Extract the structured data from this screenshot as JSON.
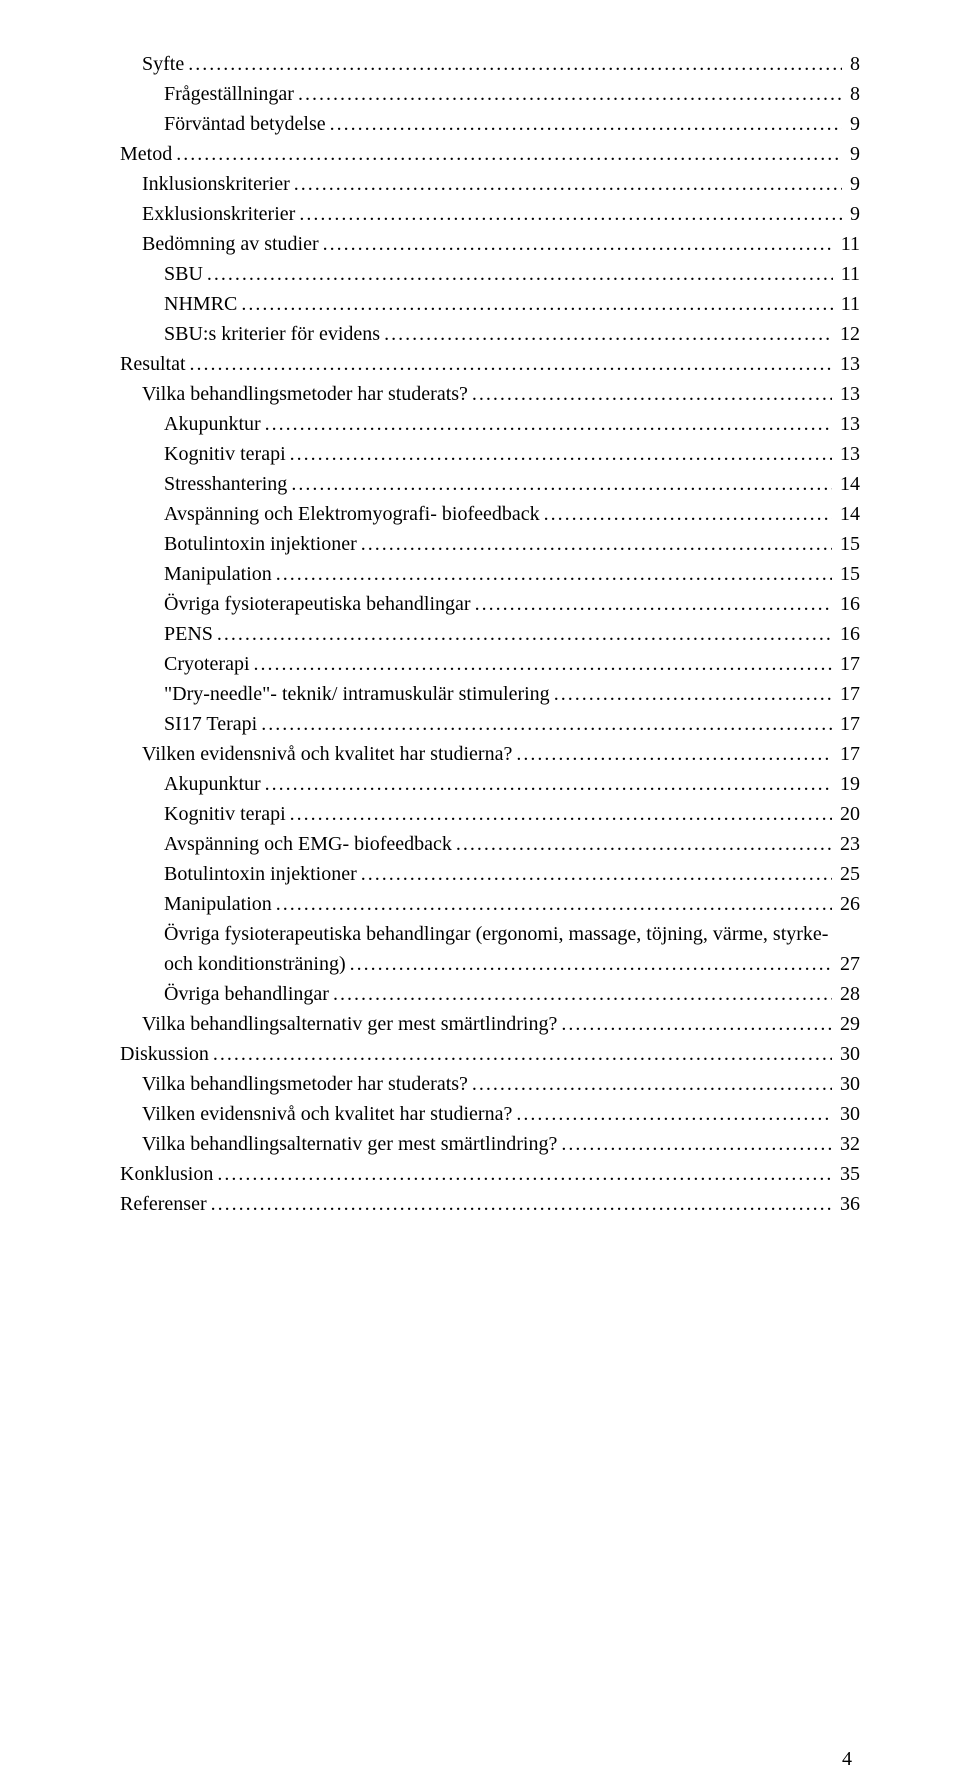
{
  "pageNumber": "4",
  "entries": [
    {
      "label": "Syfte",
      "page": "8",
      "indent": 1
    },
    {
      "label": "Frågeställningar",
      "page": "8",
      "indent": 2
    },
    {
      "label": "Förväntad betydelse",
      "page": "9",
      "indent": 2
    },
    {
      "label": "Metod",
      "page": "9",
      "indent": 0
    },
    {
      "label": "Inklusionskriterier",
      "page": "9",
      "indent": 1
    },
    {
      "label": "Exklusionskriterier",
      "page": "9",
      "indent": 1
    },
    {
      "label": "Bedömning av studier",
      "page": "11",
      "indent": 1
    },
    {
      "label": "SBU",
      "page": "11",
      "indent": 2
    },
    {
      "label": "NHMRC",
      "page": "11",
      "indent": 2
    },
    {
      "label": "SBU:s kriterier för evidens",
      "page": "12",
      "indent": 2
    },
    {
      "label": "Resultat",
      "page": "13",
      "indent": 0
    },
    {
      "label": "Vilka behandlingsmetoder har studerats?",
      "page": "13",
      "indent": 1
    },
    {
      "label": "Akupunktur",
      "page": "13",
      "indent": 2
    },
    {
      "label": "Kognitiv terapi",
      "page": "13",
      "indent": 2
    },
    {
      "label": "Stresshantering",
      "page": "14",
      "indent": 2
    },
    {
      "label": "Avspänning och Elektromyografi- biofeedback",
      "page": "14",
      "indent": 2
    },
    {
      "label": "Botulintoxin injektioner",
      "page": "15",
      "indent": 2
    },
    {
      "label": "Manipulation",
      "page": "15",
      "indent": 2
    },
    {
      "label": "Övriga fysioterapeutiska behandlingar",
      "page": "16",
      "indent": 2
    },
    {
      "label": "PENS",
      "page": "16",
      "indent": 2
    },
    {
      "label": "Cryoterapi",
      "page": "17",
      "indent": 2
    },
    {
      "label": "\"Dry-needle\"- teknik/ intramuskulär stimulering",
      "page": "17",
      "indent": 2
    },
    {
      "label": "SI17 Terapi",
      "page": "17",
      "indent": 2
    },
    {
      "label": "Vilken evidensnivå och kvalitet har studierna?",
      "page": "17",
      "indent": 1
    },
    {
      "label": "Akupunktur",
      "page": "19",
      "indent": 2
    },
    {
      "label": "Kognitiv terapi",
      "page": "20",
      "indent": 2
    },
    {
      "label": "Avspänning och EMG- biofeedback",
      "page": "23",
      "indent": 2
    },
    {
      "label": "Botulintoxin injektioner",
      "page": "25",
      "indent": 2
    },
    {
      "label": "Manipulation",
      "page": "26",
      "indent": 2
    },
    {
      "label": "Övriga fysioterapeutiska behandlingar (ergonomi, massage, töjning, värme, styrke- och konditionsträning)",
      "page": "27",
      "indent": 2,
      "wrap": true
    },
    {
      "label": "Övriga behandlingar",
      "page": "28",
      "indent": 2
    },
    {
      "label": "Vilka behandlingsalternativ ger mest smärtlindring?",
      "page": "29",
      "indent": 1
    },
    {
      "label": "Diskussion",
      "page": "30",
      "indent": 0
    },
    {
      "label": "Vilka behandlingsmetoder har studerats?",
      "page": "30",
      "indent": 1
    },
    {
      "label": "Vilken evidensnivå och kvalitet har studierna?",
      "page": "30",
      "indent": 1
    },
    {
      "label": "Vilka behandlingsalternativ ger mest smärtlindring?",
      "page": "32",
      "indent": 1
    },
    {
      "label": "Konklusion",
      "page": "35",
      "indent": 0
    },
    {
      "label": "Referenser",
      "page": "36",
      "indent": 0
    }
  ]
}
